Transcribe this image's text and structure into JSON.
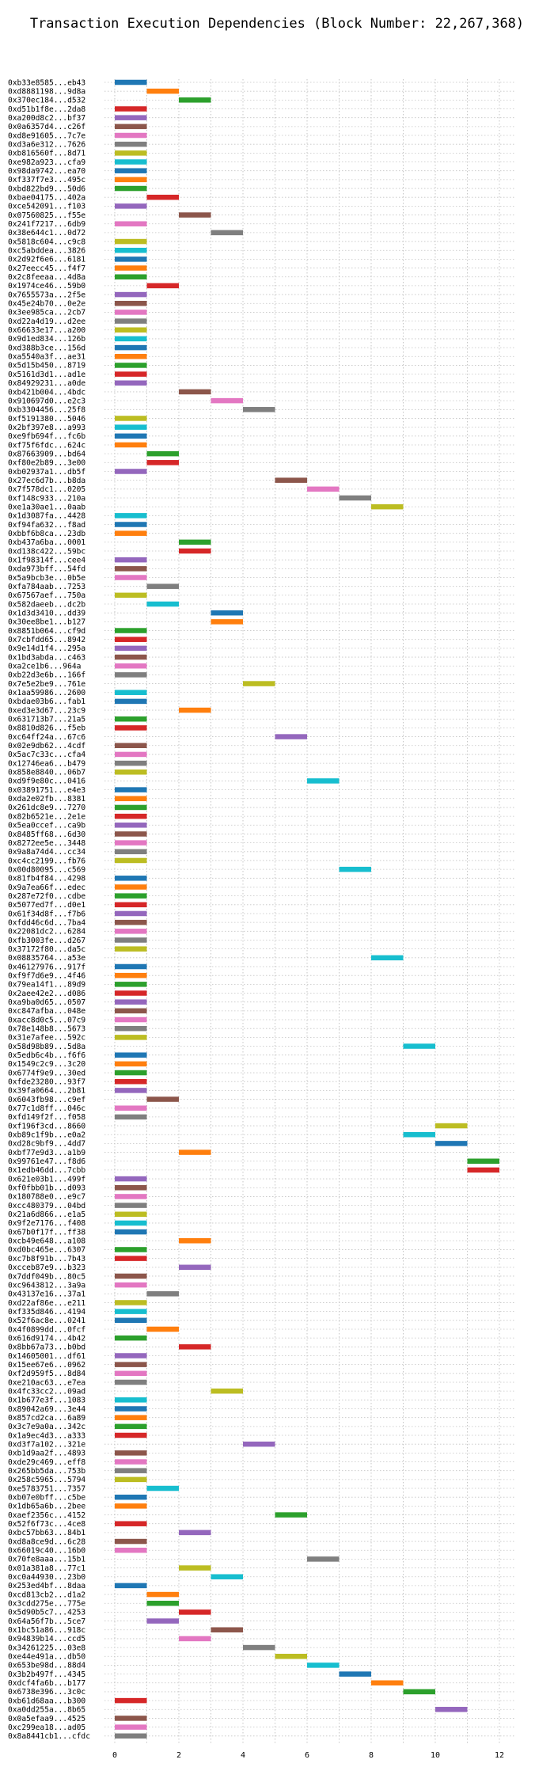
{
  "chart_data": {
    "type": "gantt",
    "title": "Transaction Execution Dependencies (Block Number: 22,267,368)",
    "xlabel": "",
    "ylabel": "",
    "xlim": [
      -0.5,
      12.5
    ],
    "xticks": [
      0,
      2,
      4,
      6,
      8,
      10,
      12
    ],
    "grid": "dotted",
    "bar_width": 1,
    "colors": [
      "#1f77b4",
      "#ff7f0e",
      "#2ca02c",
      "#d62728",
      "#9467bd",
      "#8c564b",
      "#e377c2",
      "#7f7f7f",
      "#bcbd22",
      "#17becf"
    ],
    "transactions": [
      {
        "label": "0xb33e8585...eb43",
        "start": 0,
        "color": "#1f77b4"
      },
      {
        "label": "0xd8881198...9d8a",
        "start": 1,
        "color": "#ff7f0e"
      },
      {
        "label": "0x370ec184...d532",
        "start": 2,
        "color": "#2ca02c"
      },
      {
        "label": "0xd51b1f8e...2da8",
        "start": 0,
        "color": "#d62728"
      },
      {
        "label": "0xa200d8c2...bf37",
        "start": 0,
        "color": "#9467bd"
      },
      {
        "label": "0x0a6357d4...c26f",
        "start": 0,
        "color": "#8c564b"
      },
      {
        "label": "0xd8e91605...7c7e",
        "start": 0,
        "color": "#e377c2"
      },
      {
        "label": "0xd3a6e312...7626",
        "start": 0,
        "color": "#7f7f7f"
      },
      {
        "label": "0xb816560f...8d71",
        "start": 0,
        "color": "#bcbd22"
      },
      {
        "label": "0xe982a923...cfa9",
        "start": 0,
        "color": "#17becf"
      },
      {
        "label": "0x98da9742...ea70",
        "start": 0,
        "color": "#1f77b4"
      },
      {
        "label": "0xf337f7e3...495c",
        "start": 0,
        "color": "#ff7f0e"
      },
      {
        "label": "0xbd822bd9...50d6",
        "start": 0,
        "color": "#2ca02c"
      },
      {
        "label": "0xbae04175...402a",
        "start": 1,
        "color": "#d62728"
      },
      {
        "label": "0xce542091...f103",
        "start": 0,
        "color": "#9467bd"
      },
      {
        "label": "0x07560825...f55e",
        "start": 2,
        "color": "#8c564b"
      },
      {
        "label": "0x241f7217...6db9",
        "start": 0,
        "color": "#e377c2"
      },
      {
        "label": "0x38e644c1...0d72",
        "start": 3,
        "color": "#7f7f7f"
      },
      {
        "label": "0x5818c604...c9c8",
        "start": 0,
        "color": "#bcbd22"
      },
      {
        "label": "0xc5abddea...3826",
        "start": 0,
        "color": "#17becf"
      },
      {
        "label": "0x2d92f6e6...6181",
        "start": 0,
        "color": "#1f77b4"
      },
      {
        "label": "0x27eecc45...f4f7",
        "start": 0,
        "color": "#ff7f0e"
      },
      {
        "label": "0x2c8feeaa...4d8a",
        "start": 0,
        "color": "#2ca02c"
      },
      {
        "label": "0x1974ce46...59b0",
        "start": 1,
        "color": "#d62728"
      },
      {
        "label": "0x7655573a...2f5e",
        "start": 0,
        "color": "#9467bd"
      },
      {
        "label": "0x45e24b70...0e2e",
        "start": 0,
        "color": "#8c564b"
      },
      {
        "label": "0x3ee985ca...2cb7",
        "start": 0,
        "color": "#e377c2"
      },
      {
        "label": "0xd22a4d19...d2ee",
        "start": 0,
        "color": "#7f7f7f"
      },
      {
        "label": "0x66633e17...a200",
        "start": 0,
        "color": "#bcbd22"
      },
      {
        "label": "0x9d1ed834...126b",
        "start": 0,
        "color": "#17becf"
      },
      {
        "label": "0xd388b3ce...156d",
        "start": 0,
        "color": "#1f77b4"
      },
      {
        "label": "0xa5540a3f...ae31",
        "start": 0,
        "color": "#ff7f0e"
      },
      {
        "label": "0x5d15b450...8719",
        "start": 0,
        "color": "#2ca02c"
      },
      {
        "label": "0x5161d3d1...ad1e",
        "start": 0,
        "color": "#d62728"
      },
      {
        "label": "0x84929231...a0de",
        "start": 0,
        "color": "#9467bd"
      },
      {
        "label": "0xb421b004...4bdc",
        "start": 2,
        "color": "#8c564b"
      },
      {
        "label": "0x910697d0...e2c3",
        "start": 3,
        "color": "#e377c2"
      },
      {
        "label": "0xb3304456...25f8",
        "start": 4,
        "color": "#7f7f7f"
      },
      {
        "label": "0xf5191380...5046",
        "start": 0,
        "color": "#bcbd22"
      },
      {
        "label": "0x2bf397e8...a993",
        "start": 0,
        "color": "#17becf"
      },
      {
        "label": "0xe9fb694f...fc6b",
        "start": 0,
        "color": "#1f77b4"
      },
      {
        "label": "0xf75f6fdc...624c",
        "start": 0,
        "color": "#ff7f0e"
      },
      {
        "label": "0x87663909...bd64",
        "start": 1,
        "color": "#2ca02c"
      },
      {
        "label": "0xf80e2b89...3e00",
        "start": 1,
        "color": "#d62728"
      },
      {
        "label": "0xb02937a1...db5f",
        "start": 0,
        "color": "#9467bd"
      },
      {
        "label": "0x27ec6d7b...b8da",
        "start": 5,
        "color": "#8c564b"
      },
      {
        "label": "0x7f578dc1...0205",
        "start": 6,
        "color": "#e377c2"
      },
      {
        "label": "0xf148c933...210a",
        "start": 7,
        "color": "#7f7f7f"
      },
      {
        "label": "0xe1a30ae1...0aab",
        "start": 8,
        "color": "#bcbd22"
      },
      {
        "label": "0x1d3087fa...4428",
        "start": 0,
        "color": "#17becf"
      },
      {
        "label": "0xf94fa632...f8ad",
        "start": 0,
        "color": "#1f77b4"
      },
      {
        "label": "0xbbf6b8ca...23db",
        "start": 0,
        "color": "#ff7f0e"
      },
      {
        "label": "0xb437a6ba...0001",
        "start": 2,
        "color": "#2ca02c"
      },
      {
        "label": "0xd138c422...59bc",
        "start": 2,
        "color": "#d62728"
      },
      {
        "label": "0x1f98314f...cee4",
        "start": 0,
        "color": "#9467bd"
      },
      {
        "label": "0xda973bff...54fd",
        "start": 0,
        "color": "#8c564b"
      },
      {
        "label": "0x5a9bcb3e...0b5e",
        "start": 0,
        "color": "#e377c2"
      },
      {
        "label": "0xfa784aab...7253",
        "start": 1,
        "color": "#7f7f7f"
      },
      {
        "label": "0x67567aef...750a",
        "start": 0,
        "color": "#bcbd22"
      },
      {
        "label": "0x582daeeb...dc2b",
        "start": 1,
        "color": "#17becf"
      },
      {
        "label": "0x1d3d3410...dd39",
        "start": 3,
        "color": "#1f77b4"
      },
      {
        "label": "0x30ee8be1...b127",
        "start": 3,
        "color": "#ff7f0e"
      },
      {
        "label": "0x8851b064...cf9d",
        "start": 0,
        "color": "#2ca02c"
      },
      {
        "label": "0x7cbfdd65...8942",
        "start": 0,
        "color": "#d62728"
      },
      {
        "label": "0x9e14d1f4...295a",
        "start": 0,
        "color": "#9467bd"
      },
      {
        "label": "0x1bd3abda...c463",
        "start": 0,
        "color": "#8c564b"
      },
      {
        "label": "0xa2ce1b6...964a",
        "start": 0,
        "color": "#e377c2"
      },
      {
        "label": "0xb22d3e6b...166f",
        "start": 0,
        "color": "#7f7f7f"
      },
      {
        "label": "0x7e5e2be9...761e",
        "start": 4,
        "color": "#bcbd22"
      },
      {
        "label": "0x1aa59986...2600",
        "start": 0,
        "color": "#17becf"
      },
      {
        "label": "0xbdae03b6...fab1",
        "start": 0,
        "color": "#1f77b4"
      },
      {
        "label": "0xed3e3d67...23c9",
        "start": 2,
        "color": "#ff7f0e"
      },
      {
        "label": "0x631713b7...21a5",
        "start": 0,
        "color": "#2ca02c"
      },
      {
        "label": "0x8810d826...f5eb",
        "start": 0,
        "color": "#d62728"
      },
      {
        "label": "0xc64ff24a...67c6",
        "start": 5,
        "color": "#9467bd"
      },
      {
        "label": "0x02e9db62...4cdf",
        "start": 0,
        "color": "#8c564b"
      },
      {
        "label": "0x5ac7c33c...cfa4",
        "start": 0,
        "color": "#e377c2"
      },
      {
        "label": "0x12746ea6...b479",
        "start": 0,
        "color": "#7f7f7f"
      },
      {
        "label": "0x858e8840...06b7",
        "start": 0,
        "color": "#bcbd22"
      },
      {
        "label": "0xd9f9e80c...0416",
        "start": 6,
        "color": "#17becf"
      },
      {
        "label": "0x03891751...e4e3",
        "start": 0,
        "color": "#1f77b4"
      },
      {
        "label": "0xda2e02fb...8381",
        "start": 0,
        "color": "#ff7f0e"
      },
      {
        "label": "0x261dc8e9...7270",
        "start": 0,
        "color": "#2ca02c"
      },
      {
        "label": "0x82b6521e...2e1e",
        "start": 0,
        "color": "#d62728"
      },
      {
        "label": "0x5ea0ccef...ca9b",
        "start": 0,
        "color": "#9467bd"
      },
      {
        "label": "0x8485ff68...6d30",
        "start": 0,
        "color": "#8c564b"
      },
      {
        "label": "0x8272ee5e...3448",
        "start": 0,
        "color": "#e377c2"
      },
      {
        "label": "0x9a8a74d4...cc34",
        "start": 0,
        "color": "#7f7f7f"
      },
      {
        "label": "0xc4cc2199...fb76",
        "start": 0,
        "color": "#bcbd22"
      },
      {
        "label": "0x00d80095...c569",
        "start": 7,
        "color": "#17becf"
      },
      {
        "label": "0x81fb4f84...4298",
        "start": 0,
        "color": "#1f77b4"
      },
      {
        "label": "0x9a7ea66f...edec",
        "start": 0,
        "color": "#ff7f0e"
      },
      {
        "label": "0x287e72f0...cdbe",
        "start": 0,
        "color": "#2ca02c"
      },
      {
        "label": "0x5077ed7f...d0e1",
        "start": 0,
        "color": "#d62728"
      },
      {
        "label": "0x61f34d8f...f7b6",
        "start": 0,
        "color": "#9467bd"
      },
      {
        "label": "0xfdd46c6d...7ba4",
        "start": 0,
        "color": "#8c564b"
      },
      {
        "label": "0x22081dc2...6284",
        "start": 0,
        "color": "#e377c2"
      },
      {
        "label": "0xfb3003fe...d267",
        "start": 0,
        "color": "#7f7f7f"
      },
      {
        "label": "0x37172f80...da5c",
        "start": 0,
        "color": "#bcbd22"
      },
      {
        "label": "0x08835764...a53e",
        "start": 8,
        "color": "#17becf"
      },
      {
        "label": "0x46127976...917f",
        "start": 0,
        "color": "#1f77b4"
      },
      {
        "label": "0xf9f7d6e9...4f46",
        "start": 0,
        "color": "#ff7f0e"
      },
      {
        "label": "0x79ea14f1...89d9",
        "start": 0,
        "color": "#2ca02c"
      },
      {
        "label": "0x2aee42e2...d086",
        "start": 0,
        "color": "#d62728"
      },
      {
        "label": "0xa9ba0d65...0507",
        "start": 0,
        "color": "#9467bd"
      },
      {
        "label": "0xc847afba...048e",
        "start": 0,
        "color": "#8c564b"
      },
      {
        "label": "0xacc8d0c5...07c9",
        "start": 0,
        "color": "#e377c2"
      },
      {
        "label": "0x78e148b8...5673",
        "start": 0,
        "color": "#7f7f7f"
      },
      {
        "label": "0x31e7afee...592c",
        "start": 0,
        "color": "#bcbd22"
      },
      {
        "label": "0x58d98b89...5d8a",
        "start": 9,
        "color": "#17becf"
      },
      {
        "label": "0x5edb6c4b...f6f6",
        "start": 0,
        "color": "#1f77b4"
      },
      {
        "label": "0x1549c2c9...3c20",
        "start": 0,
        "color": "#ff7f0e"
      },
      {
        "label": "0x6774f9e9...30ed",
        "start": 0,
        "color": "#2ca02c"
      },
      {
        "label": "0xfde23280...93f7",
        "start": 0,
        "color": "#d62728"
      },
      {
        "label": "0x39fa0664...2b81",
        "start": 0,
        "color": "#9467bd"
      },
      {
        "label": "0x6043fb98...c9ef",
        "start": 1,
        "color": "#8c564b"
      },
      {
        "label": "0x77c1d8ff...046c",
        "start": 0,
        "color": "#e377c2"
      },
      {
        "label": "0xfd149f2f...f058",
        "start": 0,
        "color": "#7f7f7f"
      },
      {
        "label": "0xf196f3cd...8660",
        "start": 10,
        "color": "#bcbd22"
      },
      {
        "label": "0xb89c1f9b...e0a2",
        "start": 9,
        "color": "#17becf"
      },
      {
        "label": "0xd28c9bf9...4dd7",
        "start": 10,
        "color": "#1f77b4"
      },
      {
        "label": "0xbf77e9d3...a1b9",
        "start": 2,
        "color": "#ff7f0e"
      },
      {
        "label": "0x99761e47...f8d6",
        "start": 11,
        "color": "#2ca02c"
      },
      {
        "label": "0x1edb46dd...7cbb",
        "start": 11,
        "color": "#d62728"
      },
      {
        "label": "0x621e03b1...499f",
        "start": 0,
        "color": "#9467bd"
      },
      {
        "label": "0xf0fbb01b...d093",
        "start": 0,
        "color": "#8c564b"
      },
      {
        "label": "0x180788e0...e9c7",
        "start": 0,
        "color": "#e377c2"
      },
      {
        "label": "0xcc480379...04bd",
        "start": 0,
        "color": "#7f7f7f"
      },
      {
        "label": "0x21a6d866...e1a5",
        "start": 0,
        "color": "#bcbd22"
      },
      {
        "label": "0x9f2e7176...f408",
        "start": 0,
        "color": "#17becf"
      },
      {
        "label": "0x67b0f17f...ff38",
        "start": 0,
        "color": "#1f77b4"
      },
      {
        "label": "0xcb49e648...a108",
        "start": 2,
        "color": "#ff7f0e"
      },
      {
        "label": "0xd0bc465e...6307",
        "start": 0,
        "color": "#2ca02c"
      },
      {
        "label": "0xc7b8f91b...7b43",
        "start": 0,
        "color": "#d62728"
      },
      {
        "label": "0xcceb87e9...b323",
        "start": 2,
        "color": "#9467bd"
      },
      {
        "label": "0x7ddf049b...80c5",
        "start": 0,
        "color": "#8c564b"
      },
      {
        "label": "0xc9643812...3a9a",
        "start": 0,
        "color": "#e377c2"
      },
      {
        "label": "0x43137e16...37a1",
        "start": 1,
        "color": "#7f7f7f"
      },
      {
        "label": "0xd22af86e...e211",
        "start": 0,
        "color": "#bcbd22"
      },
      {
        "label": "0xf335d846...4194",
        "start": 0,
        "color": "#17becf"
      },
      {
        "label": "0x52f6ac8e...0241",
        "start": 0,
        "color": "#1f77b4"
      },
      {
        "label": "0x4f0899dd...0fcf",
        "start": 1,
        "color": "#ff7f0e"
      },
      {
        "label": "0x616d9174...4b42",
        "start": 0,
        "color": "#2ca02c"
      },
      {
        "label": "0x8bb67a73...b0bd",
        "start": 2,
        "color": "#d62728"
      },
      {
        "label": "0x14605001...df61",
        "start": 0,
        "color": "#9467bd"
      },
      {
        "label": "0x15ee67e6...0962",
        "start": 0,
        "color": "#8c564b"
      },
      {
        "label": "0xf2d959f5...8d84",
        "start": 0,
        "color": "#e377c2"
      },
      {
        "label": "0xe210ac63...e7ea",
        "start": 0,
        "color": "#7f7f7f"
      },
      {
        "label": "0x4fc33cc2...09ad",
        "start": 3,
        "color": "#bcbd22"
      },
      {
        "label": "0x1b677e3f...1083",
        "start": 0,
        "color": "#17becf"
      },
      {
        "label": "0x89042a69...3e44",
        "start": 0,
        "color": "#1f77b4"
      },
      {
        "label": "0x857cd2ca...6a89",
        "start": 0,
        "color": "#ff7f0e"
      },
      {
        "label": "0x3c7e9a0a...342c",
        "start": 0,
        "color": "#2ca02c"
      },
      {
        "label": "0x1a9ec4d3...a333",
        "start": 0,
        "color": "#d62728"
      },
      {
        "label": "0xd3f7a102...321e",
        "start": 4,
        "color": "#9467bd"
      },
      {
        "label": "0xb1d9aa2f...4893",
        "start": 0,
        "color": "#8c564b"
      },
      {
        "label": "0xde29c469...eff8",
        "start": 0,
        "color": "#e377c2"
      },
      {
        "label": "0x265bb5da...753b",
        "start": 0,
        "color": "#7f7f7f"
      },
      {
        "label": "0x258c5965...5794",
        "start": 0,
        "color": "#bcbd22"
      },
      {
        "label": "0xe5783751...7357",
        "start": 1,
        "color": "#17becf"
      },
      {
        "label": "0xb07e0bff...c5be",
        "start": 0,
        "color": "#1f77b4"
      },
      {
        "label": "0x1db65a6b...2bee",
        "start": 0,
        "color": "#ff7f0e"
      },
      {
        "label": "0xaef2356c...4152",
        "start": 5,
        "color": "#2ca02c"
      },
      {
        "label": "0x52f6f73c...4ce8",
        "start": 0,
        "color": "#d62728"
      },
      {
        "label": "0xbc57bb63...84b1",
        "start": 2,
        "color": "#9467bd"
      },
      {
        "label": "0xd8a8ce9d...6c28",
        "start": 0,
        "color": "#8c564b"
      },
      {
        "label": "0x66019c40...16b0",
        "start": 0,
        "color": "#e377c2"
      },
      {
        "label": "0x70fe8aaa...15b1",
        "start": 6,
        "color": "#7f7f7f"
      },
      {
        "label": "0x01a381a8...77c1",
        "start": 2,
        "color": "#bcbd22"
      },
      {
        "label": "0xc0a44930...23b0",
        "start": 3,
        "color": "#17becf"
      },
      {
        "label": "0x253ed4bf...8daa",
        "start": 0,
        "color": "#1f77b4"
      },
      {
        "label": "0xcd813cb2...d1a2",
        "start": 1,
        "color": "#ff7f0e"
      },
      {
        "label": "0x3cdd275e...775e",
        "start": 1,
        "color": "#2ca02c"
      },
      {
        "label": "0x5d90b5c7...4253",
        "start": 2,
        "color": "#d62728"
      },
      {
        "label": "0x64a56f7b...5ce7",
        "start": 1,
        "color": "#9467bd"
      },
      {
        "label": "0x1bc51a86...918c",
        "start": 3,
        "color": "#8c564b"
      },
      {
        "label": "0x94839b14...ccd5",
        "start": 2,
        "color": "#e377c2"
      },
      {
        "label": "0x34261225...03e8",
        "start": 4,
        "color": "#7f7f7f"
      },
      {
        "label": "0xe44e491a...db50",
        "start": 5,
        "color": "#bcbd22"
      },
      {
        "label": "0x653be98d...88d4",
        "start": 6,
        "color": "#17becf"
      },
      {
        "label": "0x3b2b497f...4345",
        "start": 7,
        "color": "#1f77b4"
      },
      {
        "label": "0xdcf4fa6b...b177",
        "start": 8,
        "color": "#ff7f0e"
      },
      {
        "label": "0x6738e396...3c0c",
        "start": 9,
        "color": "#2ca02c"
      },
      {
        "label": "0xb61d68aa...b300",
        "start": 0,
        "color": "#d62728"
      },
      {
        "label": "0xa0dd255a...8b65",
        "start": 10,
        "color": "#9467bd"
      },
      {
        "label": "0x0a5efaa9...4525",
        "start": 0,
        "color": "#8c564b"
      },
      {
        "label": "0xc299ea18...ad05",
        "start": 0,
        "color": "#e377c2"
      },
      {
        "label": "0x8a8441cb1...cfdc",
        "start": 0,
        "color": "#7f7f7f"
      }
    ]
  }
}
